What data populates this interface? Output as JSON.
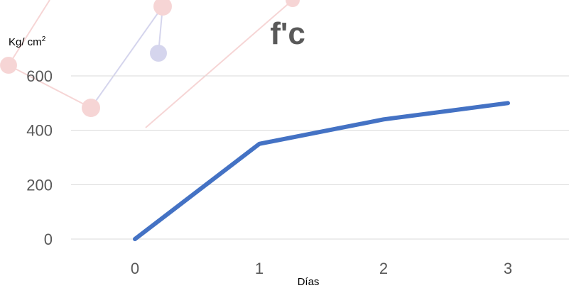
{
  "chart_data": {
    "type": "line",
    "title": "f'c",
    "xlabel": "Días",
    "ylabel": "Kg/ cm",
    "ylabel_superscript": "2",
    "categories": [
      0,
      1,
      2,
      3
    ],
    "series": [
      {
        "values": [
          0,
          350,
          440,
          500
        ],
        "color": "#4472C4"
      }
    ],
    "ylim": [
      0,
      600
    ],
    "yticks": [
      0,
      200,
      400,
      600
    ],
    "grid": true,
    "gridline_color": "#D9D9D9"
  }
}
